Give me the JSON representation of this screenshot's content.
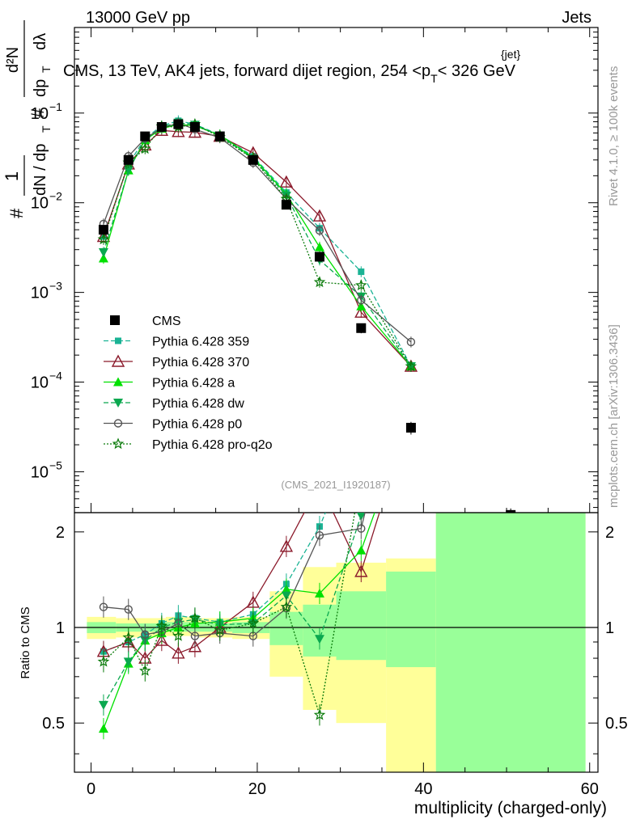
{
  "header": {
    "left": "13000 GeV pp",
    "right": "Jets",
    "title": "CMS, 13 TeV, AK4 jets, forward dijet region, 254 <p",
    "title_sup": "{jet}",
    "title_sub": "T",
    "title_end": "< 326 GeV",
    "watermark": "(CMS_2021_I1920187)",
    "side_top": "Rivet 4.1.0, ≥ 100k events",
    "side_bottom": "mcplots.cern.ch [arXiv:1306.3436]"
  },
  "axes": {
    "ylabel_parts": [
      "#",
      "1",
      "dN / dp",
      "T",
      "#",
      "d²N",
      "dp",
      "T",
      "dλ"
    ],
    "xlabel": "multiplicity (charged-only)",
    "ratio_ylabel": "Ratio to CMS",
    "xticks": [
      "0",
      "20",
      "40",
      "60"
    ],
    "yticks_main": [
      "10",
      "10",
      "10",
      "10",
      "10"
    ],
    "yticks_main_exp": [
      "−1",
      "−2",
      "−3",
      "−4",
      "−5"
    ],
    "yticks_ratio": [
      "0.5",
      "1",
      "2"
    ]
  },
  "chart_data": {
    "type": "line",
    "xlim": [
      -2,
      61
    ],
    "ylim_main": [
      3.5e-06,
      0.9
    ],
    "ylim_ratio": [
      0.35,
      2.3
    ],
    "yscale": "log",
    "legend_position": "left",
    "reference": {
      "name": "CMS",
      "x": [
        1.5,
        4.5,
        6.5,
        8.5,
        10.5,
        12.5,
        15.5,
        19.5,
        23.5,
        27.5,
        32.5,
        38.5,
        50.5
      ],
      "y": [
        0.005,
        0.03,
        0.055,
        0.07,
        0.075,
        0.07,
        0.055,
        0.03,
        0.0095,
        0.0025,
        0.0004,
        3.1e-05,
        3.3e-06
      ],
      "err": [
        0.0006,
        0.002,
        0.002,
        0.002,
        0.002,
        0.002,
        0.002,
        0.002,
        0.0006,
        0.0003,
        5e-05,
        5e-06,
        6e-07
      ]
    },
    "bands": [
      {
        "x0": -0.5,
        "x1": 3,
        "y_lo": 0.92,
        "y_hi": 1.08,
        "g_lo": 0.96,
        "g_hi": 1.04
      },
      {
        "x0": 3,
        "x1": 9,
        "y_lo": 0.93,
        "y_hi": 1.07,
        "g_lo": 0.97,
        "g_hi": 1.03
      },
      {
        "x0": 9,
        "x1": 13,
        "y_lo": 0.94,
        "y_hi": 1.08,
        "g_lo": 0.97,
        "g_hi": 1.04
      },
      {
        "x0": 13,
        "x1": 17,
        "y_lo": 0.93,
        "y_hi": 1.07,
        "g_lo": 0.97,
        "g_hi": 1.03
      },
      {
        "x0": 17,
        "x1": 21.5,
        "y_lo": 0.92,
        "y_hi": 1.08,
        "g_lo": 0.96,
        "g_hi": 1.04
      },
      {
        "x0": 21.5,
        "x1": 25.5,
        "y_lo": 0.7,
        "y_hi": 1.3,
        "g_lo": 0.88,
        "g_hi": 1.12
      },
      {
        "x0": 25.5,
        "x1": 29.5,
        "y_lo": 0.55,
        "y_hi": 1.55,
        "g_lo": 0.81,
        "g_hi": 1.18
      },
      {
        "x0": 29.5,
        "x1": 35.5,
        "y_lo": 0.5,
        "y_hi": 1.6,
        "g_lo": 0.79,
        "g_hi": 1.3
      },
      {
        "x0": 35.5,
        "x1": 41.5,
        "y_lo": 0.35,
        "y_hi": 1.65,
        "g_lo": 0.75,
        "g_hi": 1.5
      },
      {
        "x0": 41.5,
        "x1": 59.5,
        "y_lo": 0.35,
        "y_hi": 2.3,
        "g_lo": 0.35,
        "g_hi": 2.3
      }
    ],
    "series": [
      {
        "name": "Pythia 6.428 359",
        "color": "#1ab394",
        "dash": "6,3",
        "marker": "square",
        "x": [
          1.5,
          4.5,
          6.5,
          8.5,
          10.5,
          12.5,
          15.5,
          19.5,
          23.5,
          27.5,
          32.5,
          38.5
        ],
        "y": [
          0.0042,
          0.027,
          0.052,
          0.072,
          0.082,
          0.075,
          0.057,
          0.033,
          0.013,
          0.0052,
          0.0017,
          0.00015
        ],
        "ratio": [
          0.84,
          0.9,
          0.95,
          1.03,
          1.09,
          1.07,
          1.04,
          1.1,
          1.37,
          2.08,
          4.25,
          4.8
        ]
      },
      {
        "name": "Pythia 6.428 370",
        "color": "#8b1a2b",
        "dash": "",
        "marker": "triangle-open",
        "x": [
          1.5,
          4.5,
          6.5,
          8.5,
          10.5,
          12.5,
          15.5,
          19.5,
          23.5,
          27.5,
          32.5,
          38.5
        ],
        "y": [
          0.0042,
          0.027,
          0.044,
          0.064,
          0.062,
          0.061,
          0.055,
          0.036,
          0.017,
          0.0071,
          0.0006,
          0.00015
        ],
        "ratio": [
          0.84,
          0.9,
          0.8,
          0.91,
          0.83,
          0.87,
          1.0,
          1.2,
          1.8,
          2.84,
          1.5,
          4.8
        ]
      },
      {
        "name": "Pythia 6.428 a",
        "color": "#00e000",
        "dash": "",
        "marker": "triangle",
        "x": [
          1.5,
          4.5,
          6.5,
          8.5,
          10.5,
          12.5,
          15.5,
          19.5,
          23.5,
          27.5,
          32.5,
          38.5
        ],
        "y": [
          0.0024,
          0.023,
          0.05,
          0.067,
          0.075,
          0.072,
          0.057,
          0.032,
          0.0125,
          0.0032,
          0.0007,
          0.00015
        ],
        "ratio": [
          0.48,
          0.77,
          0.91,
          0.96,
          1.0,
          1.03,
          1.04,
          1.07,
          1.32,
          1.28,
          1.75,
          4.8
        ]
      },
      {
        "name": "Pythia 6.428 dw",
        "color": "#0aa84f",
        "dash": "6,3",
        "marker": "triangle-down",
        "x": [
          1.5,
          4.5,
          6.5,
          8.5,
          10.5,
          12.5,
          15.5,
          19.5,
          23.5,
          27.5,
          32.5,
          38.5
        ],
        "y": [
          0.0028,
          0.023,
          0.05,
          0.07,
          0.078,
          0.074,
          0.056,
          0.031,
          0.012,
          0.0023,
          0.0009,
          0.00015
        ],
        "ratio": [
          0.57,
          0.78,
          0.91,
          1.0,
          1.04,
          1.06,
          1.02,
          1.03,
          1.26,
          0.92,
          2.25,
          4.8
        ]
      },
      {
        "name": "Pythia 6.428 p0",
        "color": "#555555",
        "dash": "",
        "marker": "circle-open",
        "x": [
          1.5,
          4.5,
          6.5,
          8.5,
          10.5,
          12.5,
          15.5,
          19.5,
          23.5,
          27.5,
          32.5,
          38.5
        ],
        "y": [
          0.0058,
          0.033,
          0.052,
          0.068,
          0.077,
          0.066,
          0.053,
          0.028,
          0.011,
          0.0049,
          0.00082,
          0.00028
        ],
        "ratio": [
          1.16,
          1.14,
          0.95,
          0.97,
          1.03,
          0.94,
          0.96,
          0.94,
          1.15,
          1.95,
          2.05,
          9.0
        ]
      },
      {
        "name": "Pythia 6.428 pro-q2o",
        "color": "#0a7a0a",
        "dash": "2,2",
        "marker": "star",
        "x": [
          1.5,
          4.5,
          6.5,
          8.5,
          10.5,
          12.5,
          15.5,
          19.5,
          23.5,
          27.5,
          32.5,
          38.5
        ],
        "y": [
          0.0039,
          0.028,
          0.04,
          0.071,
          0.07,
          0.075,
          0.054,
          0.031,
          0.011,
          0.0013,
          0.0012,
          0.00015
        ],
        "ratio": [
          0.78,
          0.93,
          0.73,
          1.01,
          0.94,
          1.07,
          0.98,
          1.03,
          1.16,
          0.53,
          3.0,
          4.8
        ]
      }
    ]
  }
}
